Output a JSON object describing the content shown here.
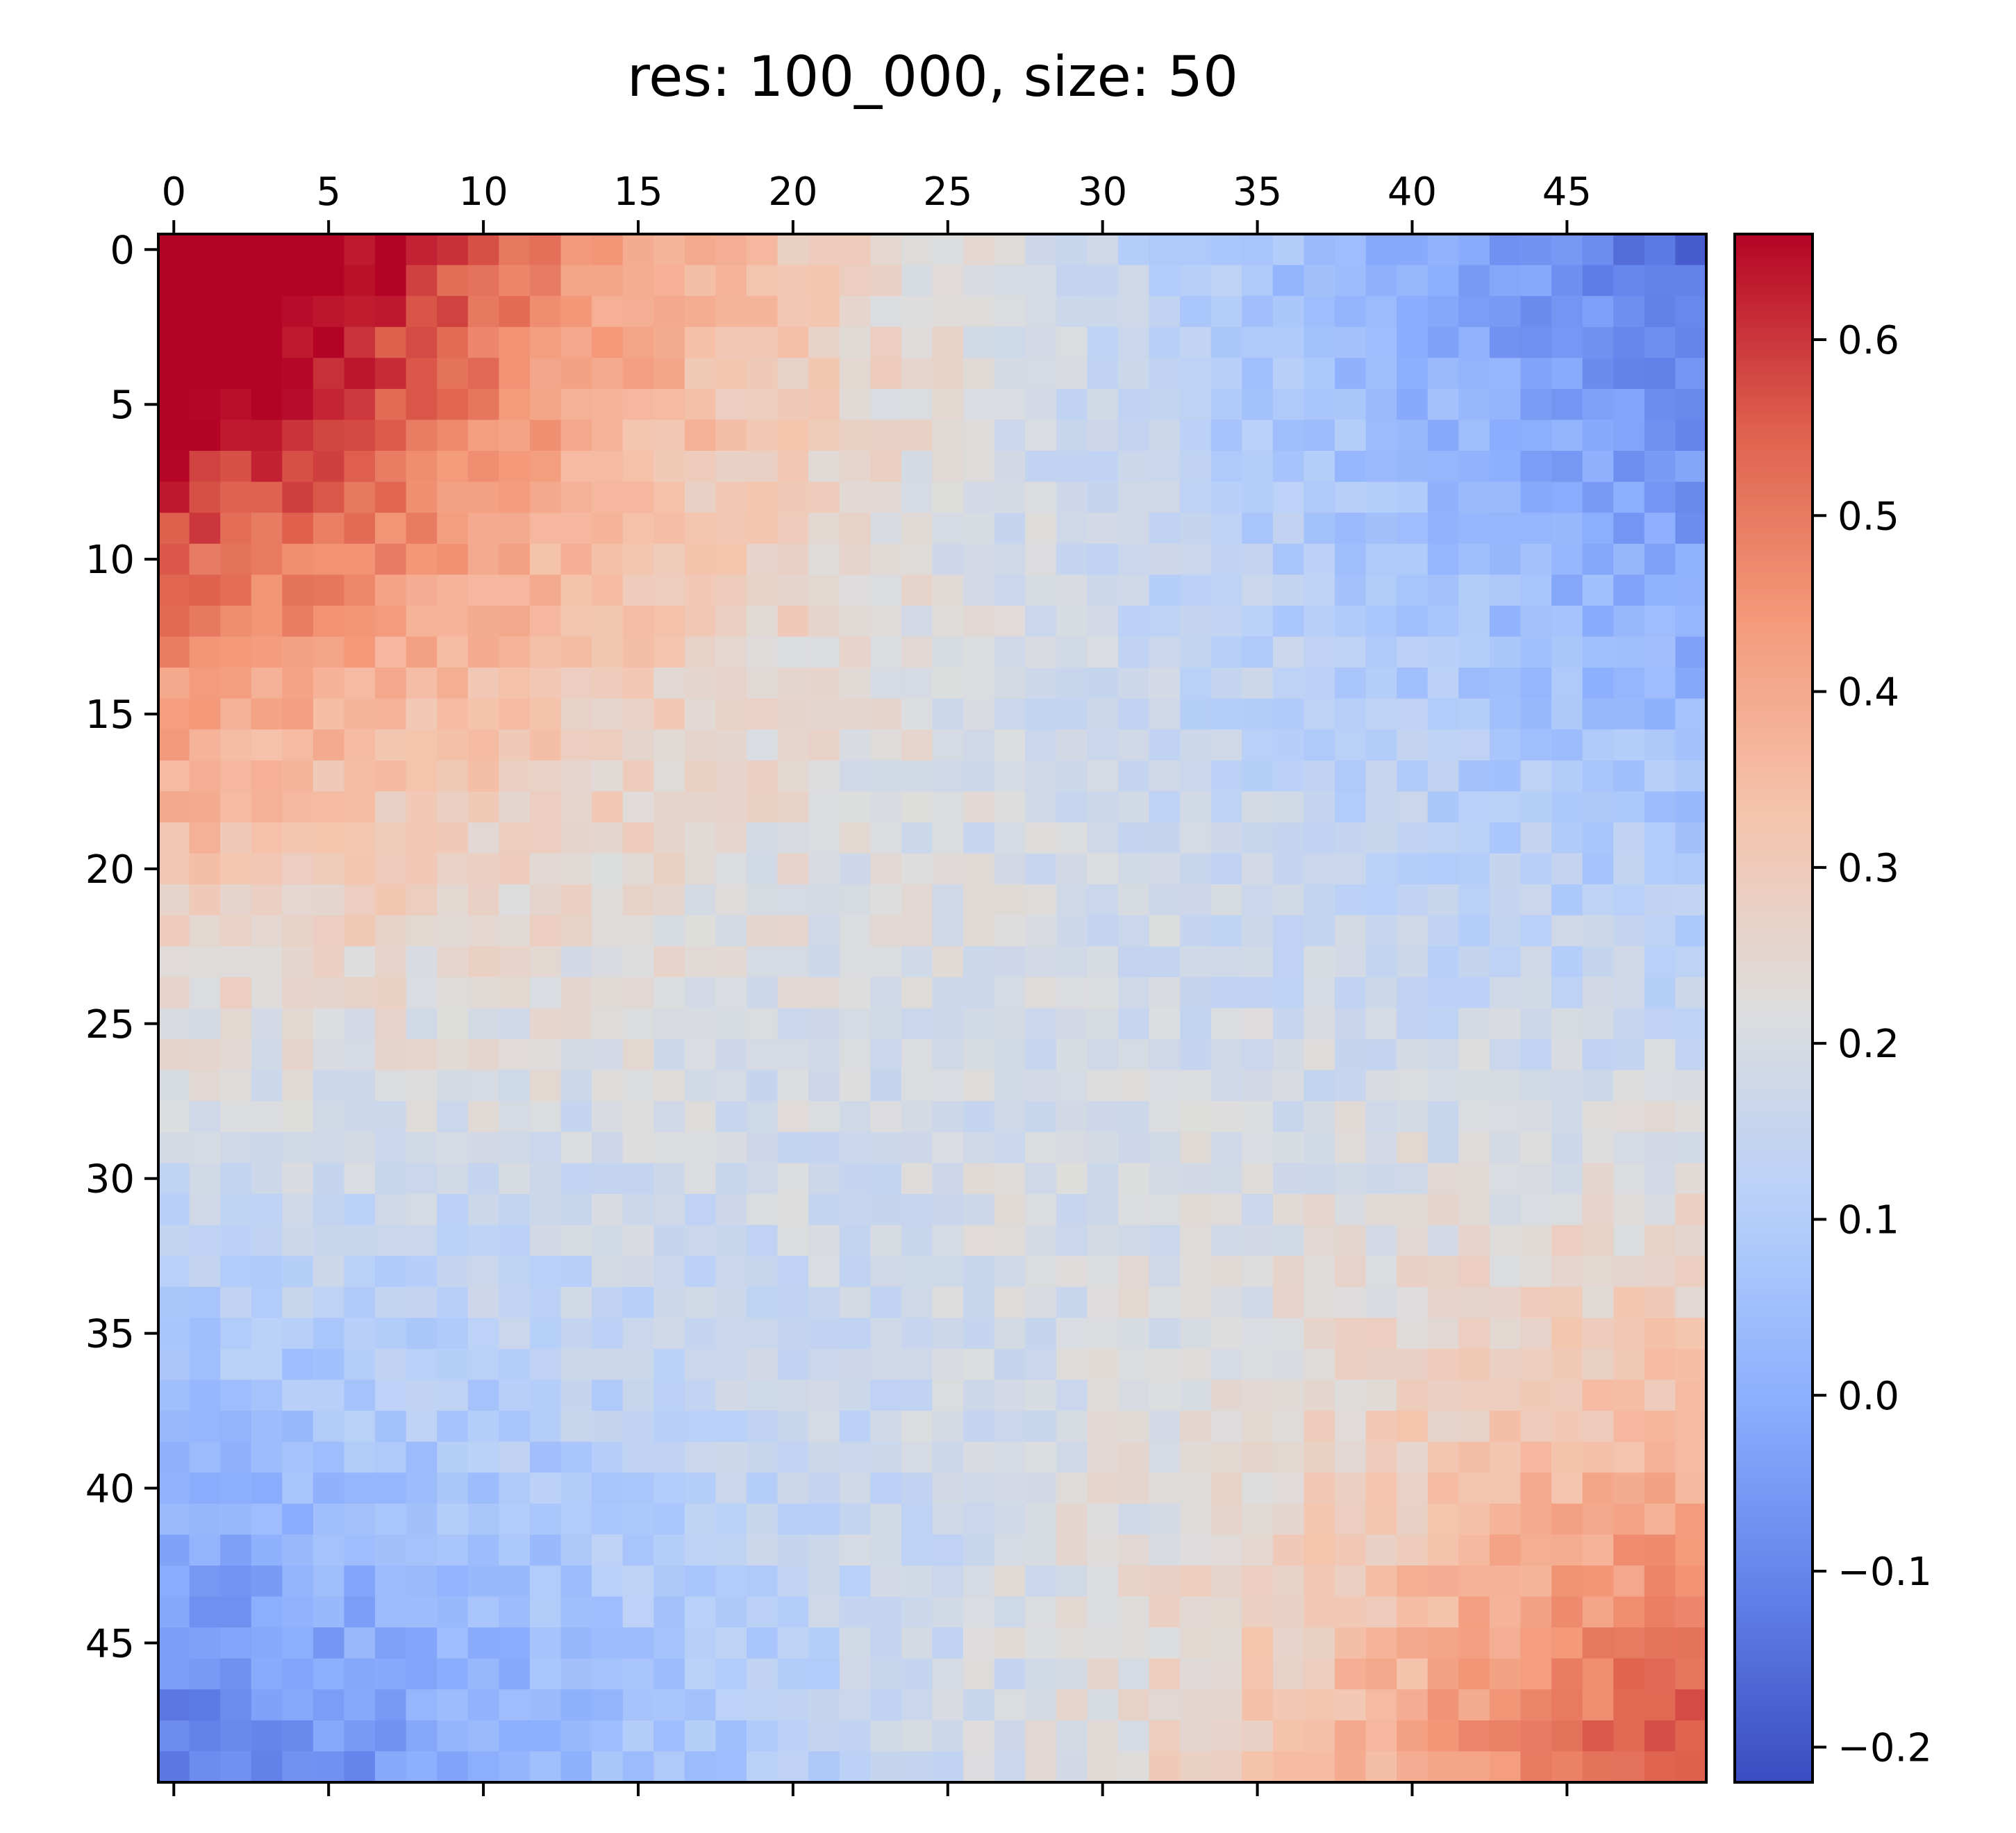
{
  "chart_data": {
    "type": "heatmap",
    "title": "res: 100_000, size: 50",
    "rows": 50,
    "cols": 50,
    "x_ticks": [
      0,
      5,
      10,
      15,
      20,
      25,
      30,
      35,
      40,
      45
    ],
    "x_tick_labels": [
      "0",
      "5",
      "10",
      "15",
      "20",
      "25",
      "30",
      "35",
      "40",
      "45"
    ],
    "y_ticks": [
      0,
      5,
      10,
      15,
      20,
      25,
      30,
      35,
      40,
      45
    ],
    "y_tick_labels": [
      "0",
      "5",
      "10",
      "15",
      "20",
      "25",
      "30",
      "35",
      "40",
      "45"
    ],
    "x_axis_position": "top",
    "colormap": "coolwarm",
    "colorbar": {
      "vmin": -0.22,
      "vmax": 0.66,
      "ticks": [
        -0.2,
        -0.1,
        0.0,
        0.1,
        0.2,
        0.3,
        0.4,
        0.5,
        0.6
      ],
      "tick_labels": [
        "−0.2",
        "−0.1",
        "0.0",
        "0.1",
        "0.2",
        "0.3",
        "0.4",
        "0.5",
        "0.6"
      ]
    },
    "pattern_note": "Approximate reconstruction: values are ~0.6 in top-left corner, ~0.45 in bottom-right corner, near -0.15 in top-right and bottom-left corners, with noise.",
    "values_summary": {
      "top_left": 0.62,
      "top_right": -0.15,
      "bottom_left": -0.13,
      "bottom_right": 0.45,
      "center": 0.12
    }
  }
}
